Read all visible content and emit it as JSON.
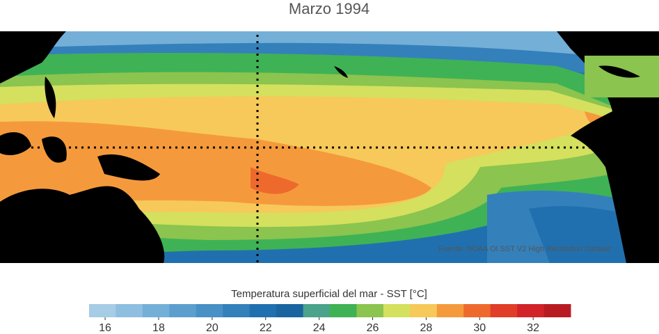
{
  "title": "Marzo 1994",
  "source": "Fuente: NOAA OI SST V2 High Resolution Dataset",
  "colorbar": {
    "label": "Temperatura superficial del mar - SST  [°C]",
    "lim": [
      15.4,
      33.4
    ],
    "ticks": [
      16,
      18,
      20,
      22,
      24,
      26,
      28,
      30,
      32
    ],
    "colors": [
      "#a6cce6",
      "#8ebfe0",
      "#74afd8",
      "#5c9fcf",
      "#4890c6",
      "#3480bb",
      "#2070af",
      "#1a64a0",
      "#4aa38a",
      "#3fb255",
      "#8bc44e",
      "#d4e05e",
      "#f6c95a",
      "#f59a3c",
      "#ee6a2c",
      "#e03e28",
      "#d2232a",
      "#b81c22"
    ]
  }
}
